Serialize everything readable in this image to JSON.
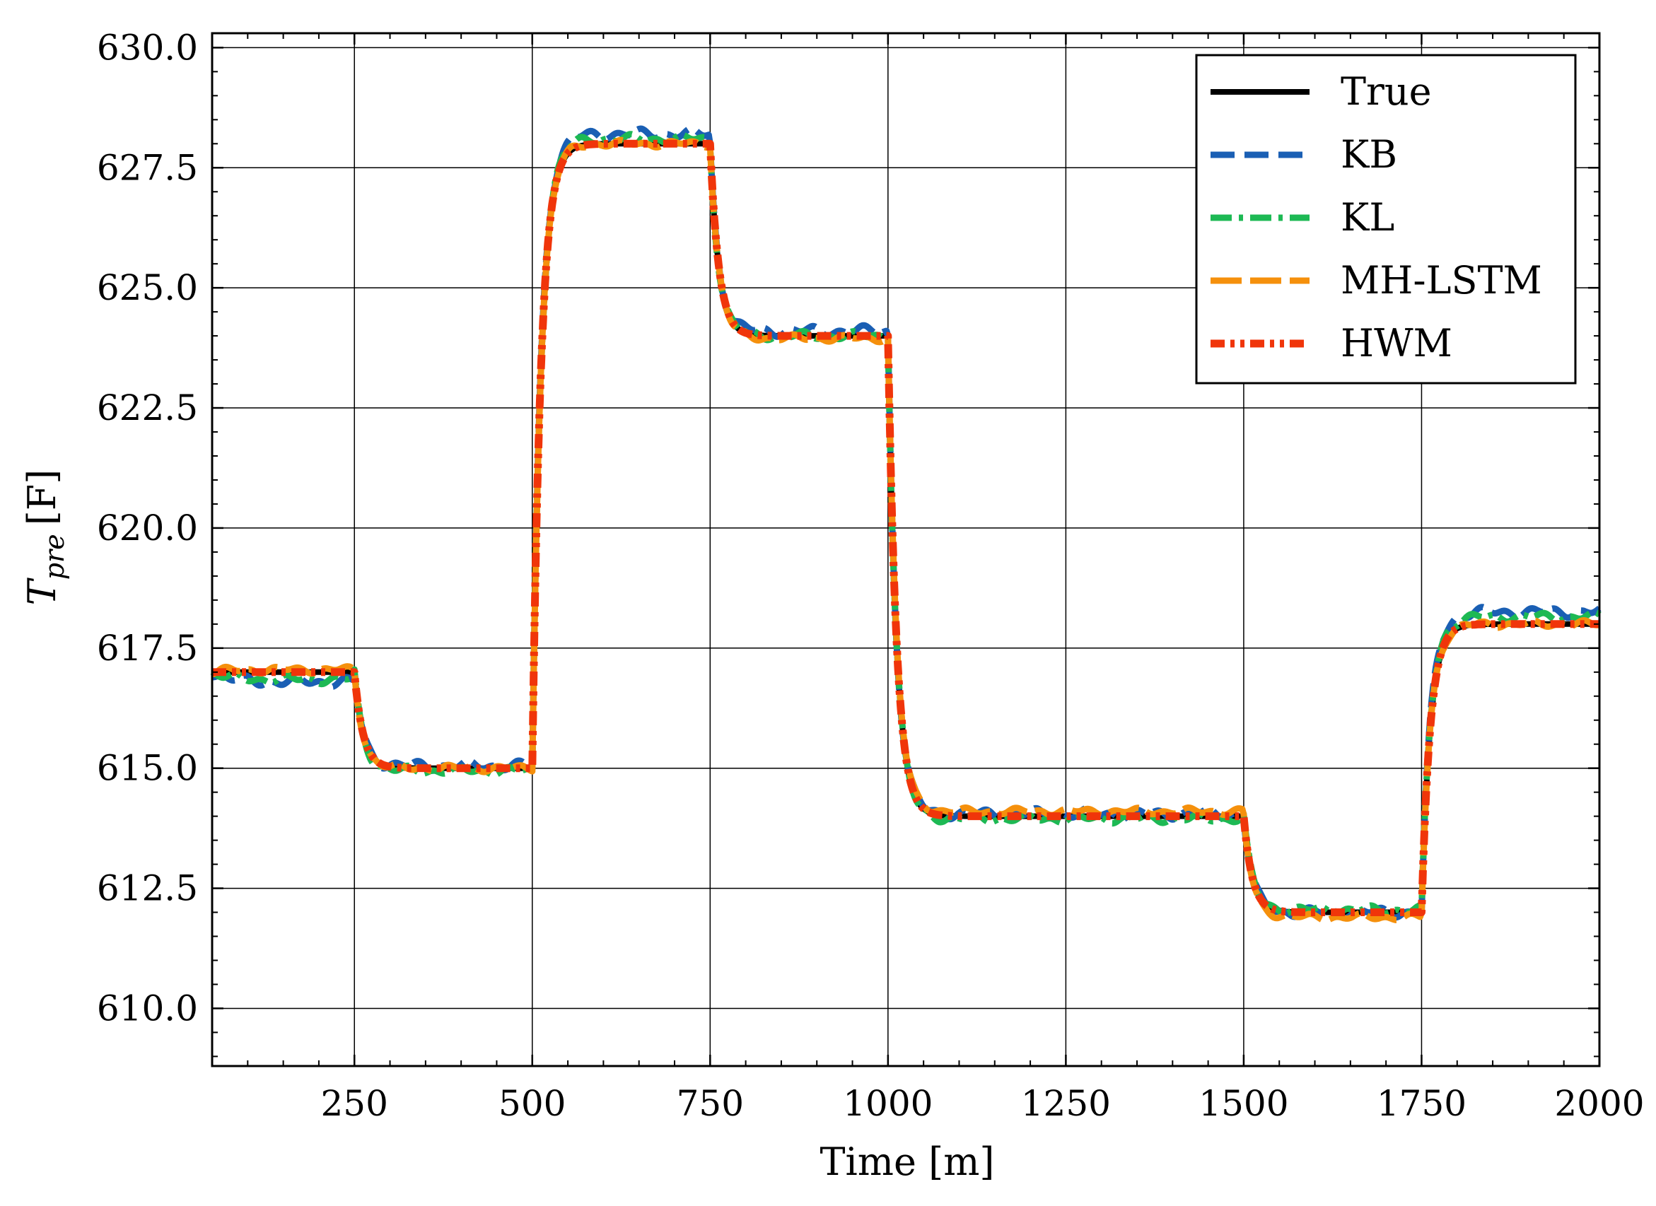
{
  "chart_data": {
    "type": "line",
    "xlabel": "Time [m]",
    "ylabel": {
      "symbol": "T",
      "subscript": "pre",
      "unit": "[F]"
    },
    "xlim": [
      50,
      2000
    ],
    "ylim": [
      608.8,
      630.3
    ],
    "xticks": [
      250,
      500,
      750,
      1000,
      1250,
      1500,
      1750,
      2000
    ],
    "xtick_labels": [
      "250",
      "500",
      "750",
      "1000",
      "1250",
      "1500",
      "1750",
      "2000"
    ],
    "yticks": [
      610.0,
      612.5,
      615.0,
      617.5,
      620.0,
      622.5,
      625.0,
      627.5,
      630.0
    ],
    "ytick_labels": [
      "610.0",
      "612.5",
      "615.0",
      "617.5",
      "620.0",
      "622.5",
      "625.0",
      "627.5",
      "630.0"
    ],
    "grid": true,
    "legend_position": "top-right",
    "setpoints": {
      "times": [
        50,
        250,
        500,
        750,
        1000,
        1500,
        1750,
        2000
      ],
      "values": [
        617.0,
        615.0,
        628.0,
        624.0,
        614.0,
        612.0,
        618.0,
        618.0
      ]
    },
    "series": [
      {
        "name": "True",
        "color": "#000000",
        "style": "solid",
        "offsets": [
          0,
          0,
          0,
          0,
          0,
          0,
          0
        ],
        "noise": 0.0
      },
      {
        "name": "KB",
        "color": "#1a5fb4",
        "style": "dashed",
        "offsets": [
          -0.2,
          0.05,
          0.2,
          0.1,
          0.05,
          0.0,
          0.25
        ],
        "noise": 0.12
      },
      {
        "name": "KL",
        "color": "#1db954",
        "style": "dashdot",
        "offsets": [
          -0.15,
          -0.05,
          0.1,
          0.0,
          -0.05,
          0.05,
          0.15
        ],
        "noise": 0.1
      },
      {
        "name": "MH-LSTM",
        "color": "#f5900c",
        "style": "longdash",
        "offsets": [
          0.05,
          0.0,
          0.0,
          -0.05,
          0.1,
          -0.1,
          0.0
        ],
        "noise": 0.08
      },
      {
        "name": "HWM",
        "color": "#f0350a",
        "style": "dashdotdot",
        "offsets": [
          0,
          0,
          0,
          0,
          0,
          0,
          0
        ],
        "noise": 0.0
      }
    ]
  }
}
